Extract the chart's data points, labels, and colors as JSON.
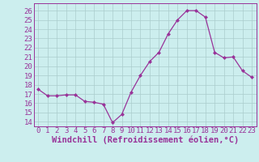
{
  "x": [
    0,
    1,
    2,
    3,
    4,
    5,
    6,
    7,
    8,
    9,
    10,
    11,
    12,
    13,
    14,
    15,
    16,
    17,
    18,
    19,
    20,
    21,
    22,
    23
  ],
  "y": [
    17.5,
    16.8,
    16.8,
    16.9,
    16.9,
    16.2,
    16.1,
    15.9,
    13.9,
    14.8,
    17.2,
    19.0,
    20.5,
    21.5,
    23.5,
    25.0,
    26.0,
    26.0,
    25.3,
    21.5,
    20.9,
    21.0,
    19.5,
    18.8
  ],
  "line_color": "#993399",
  "marker": "D",
  "marker_size": 2.0,
  "bg_color": "#cceeee",
  "grid_color": "#aacccc",
  "xlabel": "Windchill (Refroidissement éolien,°C)",
  "ylabel_ticks": [
    14,
    15,
    16,
    17,
    18,
    19,
    20,
    21,
    22,
    23,
    24,
    25,
    26
  ],
  "xlim": [
    -0.5,
    23.5
  ],
  "ylim": [
    13.5,
    26.8
  ],
  "xlabel_fontsize": 7.5,
  "tick_fontsize": 6.5
}
